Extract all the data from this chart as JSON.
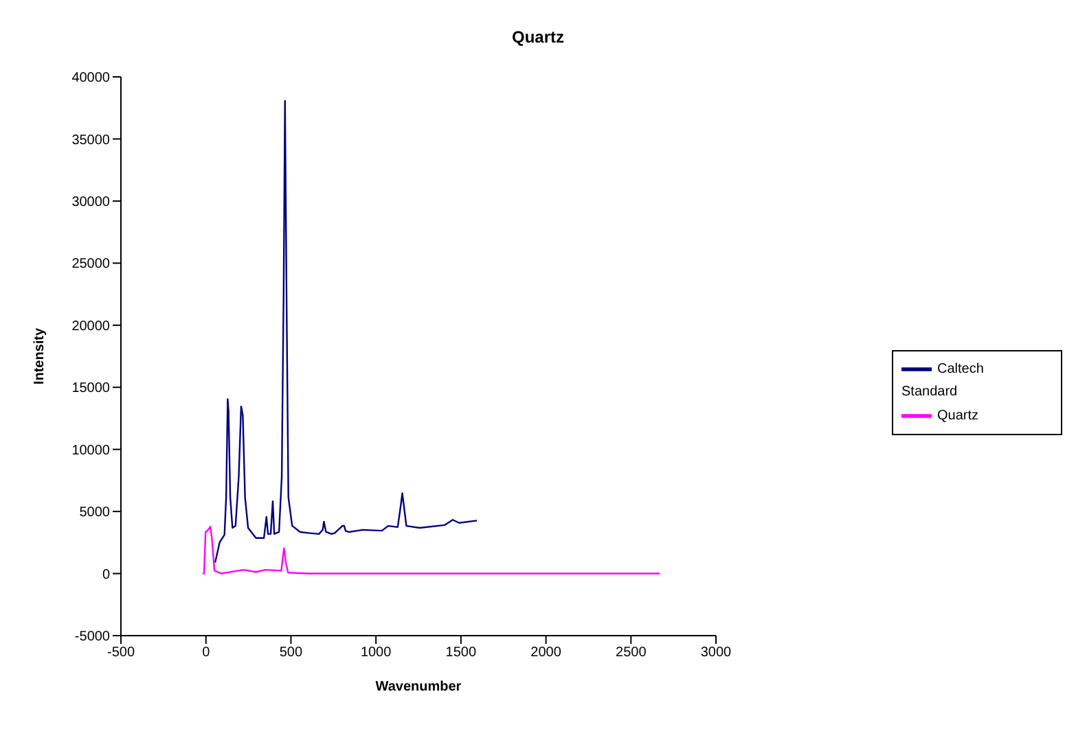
{
  "chart_data": {
    "type": "line",
    "title": "Quartz",
    "xlabel": "Wavenumber",
    "ylabel": "Intensity",
    "xlim": [
      -500,
      3000
    ],
    "xticks": [
      -500,
      0,
      500,
      1000,
      1500,
      2000,
      2500,
      3000
    ],
    "ylim": [
      -5000,
      40000
    ],
    "yticks": [
      -5000,
      0,
      5000,
      10000,
      15000,
      20000,
      25000,
      30000,
      35000,
      40000
    ],
    "grid": false,
    "legend": "right",
    "marker": "none",
    "line_style": "solid",
    "series": [
      {
        "name": "Caltech Standard",
        "color": "#000080",
        "x": [
          54,
          81,
          109,
          119,
          128,
          133,
          143,
          156,
          174,
          193,
          207,
          217,
          230,
          248,
          294,
          341,
          356,
          365,
          381,
          393,
          402,
          430,
          446,
          457,
          465,
          474,
          485,
          507,
          554,
          609,
          665,
          687,
          694,
          706,
          739,
          757,
          803,
          813,
          822,
          841,
          924,
          1035,
          1072,
          1128,
          1146,
          1155,
          1164,
          1179,
          1257,
          1405,
          1452,
          1489,
          1594
        ],
        "values": [
          890,
          2530,
          3125,
          6150,
          14050,
          13060,
          6150,
          3685,
          3850,
          7800,
          13460,
          12730,
          6150,
          3685,
          2860,
          2860,
          4570,
          3190,
          3190,
          5820,
          3190,
          3350,
          7800,
          22600,
          38070,
          22600,
          6150,
          3850,
          3350,
          3260,
          3190,
          3520,
          4180,
          3350,
          3190,
          3260,
          3840,
          3850,
          3420,
          3350,
          3520,
          3450,
          3840,
          3740,
          5490,
          6470,
          5490,
          3840,
          3680,
          3910,
          4330,
          4080,
          4270
        ]
      },
      {
        "name": "Quartz",
        "color": "#ff00ff",
        "x": [
          -20,
          -11,
          -2,
          13,
          26,
          35,
          50,
          91,
          220,
          294,
          350,
          443,
          459,
          470,
          483,
          600,
          2670
        ],
        "values": [
          0,
          0,
          3350,
          3520,
          3780,
          2860,
          230,
          0,
          300,
          130,
          300,
          230,
          2040,
          890,
          70,
          0,
          0
        ]
      }
    ]
  }
}
